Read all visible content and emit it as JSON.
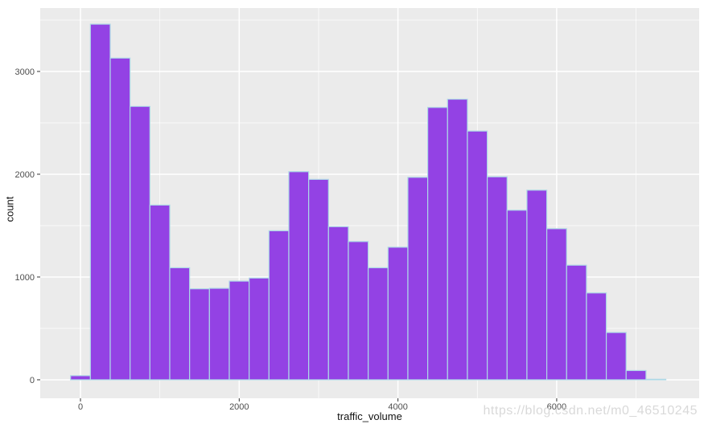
{
  "page": {
    "background": "#ffffff"
  },
  "watermark": {
    "text": "https://blog.csdn.net/m0_46510245",
    "color": "#d9d9d9"
  },
  "chart_data": {
    "type": "bar",
    "subtype": "histogram",
    "title": "",
    "xlabel": "traffic_volume",
    "ylabel": "count",
    "bin_width": 250,
    "bin_centers": [
      0,
      250,
      500,
      750,
      1000,
      1250,
      1500,
      1750,
      2000,
      2250,
      2500,
      2750,
      3000,
      3250,
      3500,
      3750,
      4000,
      4250,
      4500,
      4750,
      5000,
      5250,
      5500,
      5750,
      6000,
      6250,
      6500,
      6750,
      7000,
      7250
    ],
    "counts": [
      40,
      3460,
      3130,
      2660,
      1700,
      1090,
      885,
      890,
      960,
      990,
      1450,
      2025,
      1950,
      1490,
      1345,
      1090,
      1290,
      1970,
      2650,
      2730,
      2420,
      1975,
      1650,
      1845,
      1470,
      1115,
      845,
      460,
      90,
      5
    ],
    "x_ticks": [
      0,
      2000,
      4000,
      6000
    ],
    "x_tick_labels": [
      "0",
      "2000",
      "4000",
      "6000"
    ],
    "y_ticks": [
      0,
      1000,
      2000,
      3000
    ],
    "y_tick_labels": [
      "0",
      "1000",
      "2000",
      "3000"
    ],
    "x_minor_gridlines": [
      1000,
      3000,
      5000,
      7000
    ],
    "y_minor_gridlines": [
      500,
      1500,
      2500,
      3500
    ],
    "xlim": [
      -507,
      7795
    ],
    "ylim": [
      -180,
      3617
    ],
    "grid": true,
    "legend": false,
    "colors": {
      "bar_fill": "#9342e4",
      "bar_stroke": "#add8e6",
      "panel_bg": "#ebebeb",
      "gridline": "#ffffff",
      "tick_mark": "#333333",
      "tick_label": "#4d4d4d",
      "axis_title": "#111111"
    }
  }
}
